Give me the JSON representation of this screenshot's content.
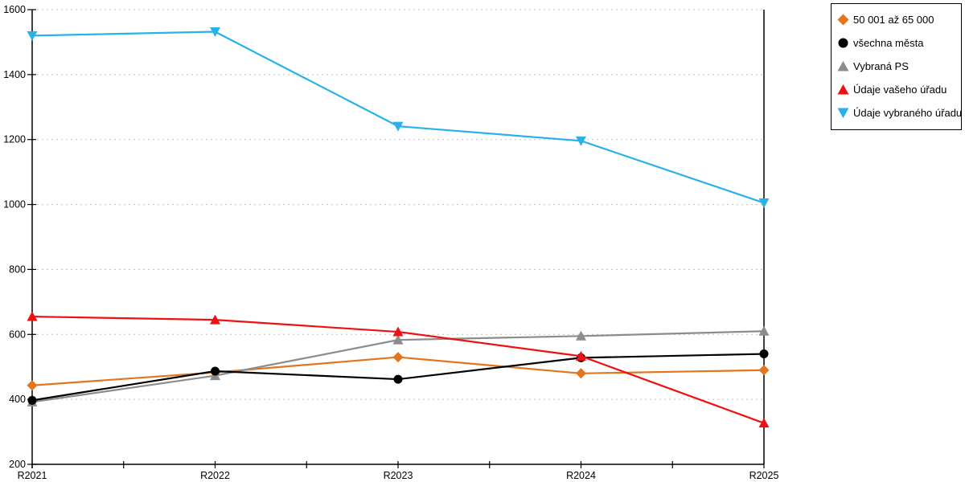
{
  "chart_data": {
    "type": "line",
    "title": "",
    "xlabel": "",
    "ylabel": "",
    "categories": [
      "R2021",
      "R2022",
      "R2023",
      "R2024",
      "R2025"
    ],
    "series": [
      {
        "name": "50 001 až 65 000",
        "color": "#E2751D",
        "marker": "diamond",
        "values": [
          443,
          483,
          530,
          480,
          490
        ]
      },
      {
        "name": "všechna města",
        "color": "#000000",
        "marker": "circle",
        "values": [
          397,
          487,
          462,
          528,
          540
        ]
      },
      {
        "name": "Vybraná PS",
        "color": "#8C8C8C",
        "marker": "triangle-up",
        "values": [
          392,
          473,
          583,
          595,
          610
        ]
      },
      {
        "name": "Údaje vašeho úřadu",
        "color": "#EE1111",
        "marker": "triangle-up",
        "values": [
          655,
          645,
          608,
          533,
          327
        ]
      },
      {
        "name": "Údaje vybraného úřadu",
        "color": "#29B1E9",
        "marker": "triangle-down",
        "values": [
          1520,
          1532,
          1241,
          1196,
          1005
        ]
      }
    ],
    "ylim": [
      200,
      1600
    ],
    "ytick_step": 200,
    "ytick_labels": [
      "200",
      "400",
      "600",
      "800",
      "1000",
      "1200",
      "1400",
      "1600"
    ],
    "grid": "horizontal-dotted",
    "grid_color": "#BFBFBF",
    "axis_color": "#000000",
    "legend_position": "top-right"
  }
}
